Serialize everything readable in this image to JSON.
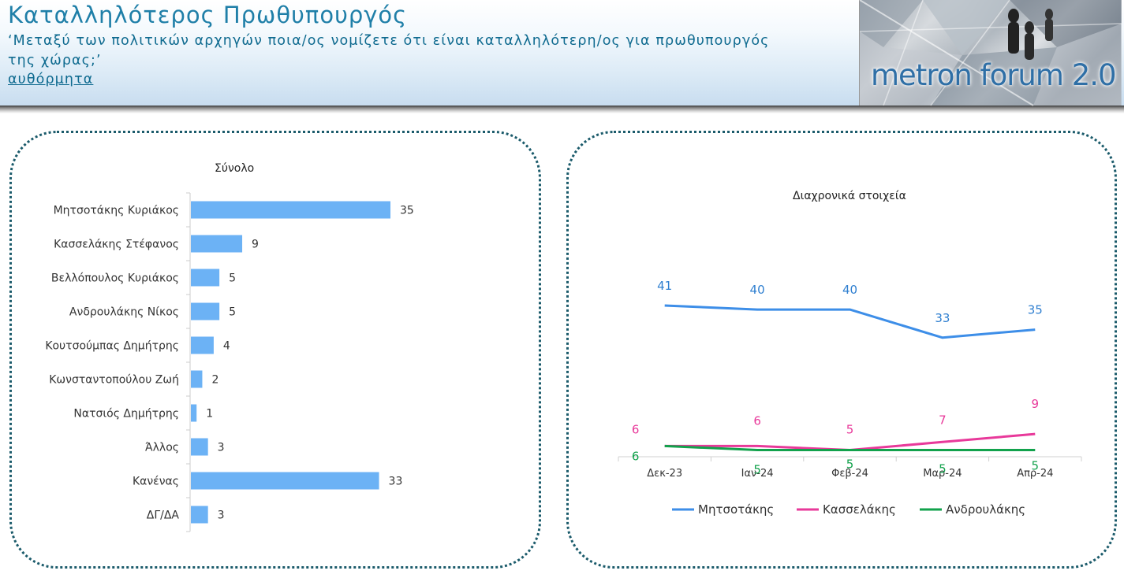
{
  "header": {
    "title": "Καταλληλότερος Πρωθυπουργός",
    "question_line1": "‘Μεταξύ των πολιτικών αρχηγών ποια/ος νομίζετε ότι είναι καταλληλότερη/ος για πρωθυπουργός",
    "question_line2": "της χώρας;’",
    "subtitle": "αυθόρμητα"
  },
  "logo": {
    "text": "metron forum 2.0"
  },
  "colors": {
    "bar": "#6cb2f5",
    "mitsotakis": "#3d8ee8",
    "kasselakis": "#e8399a",
    "androulakis": "#12a24c",
    "blue_label": "#2f7fd0"
  },
  "chart_data": [
    {
      "type": "bar",
      "title": "Σύνολο",
      "orientation": "horizontal",
      "categories": [
        "Μητσοτάκης Κυριάκος",
        "Κασσελάκης Στέφανος",
        "Βελλόπουλος Κυριάκος",
        "Ανδρουλάκης Νίκος",
        "Κουτσούμπας Δημήτρης",
        "Κωνσταντοπούλου Ζωή",
        "Νατσιός Δημήτρης",
        "Άλλος",
        "Κανένας",
        "ΔΓ/ΔΑ"
      ],
      "values": [
        35,
        9,
        5,
        5,
        4,
        2,
        1,
        3,
        33,
        3
      ],
      "xlim": [
        0,
        40
      ]
    },
    {
      "type": "line",
      "title": "Διαχρονικά στοιχεία",
      "categories": [
        "Δεκ-23",
        "Ιαν-24",
        "Φεβ-24",
        "Μαρ-24",
        "Απρ-24"
      ],
      "ylim": [
        0,
        45
      ],
      "legend_position": "bottom",
      "series": [
        {
          "name": "Μητσοτάκης",
          "values": [
            41,
            40,
            40,
            33,
            35
          ]
        },
        {
          "name": "Κασσελάκης",
          "values": [
            6,
            6,
            5,
            7,
            9
          ]
        },
        {
          "name": "Ανδρουλάκης",
          "values": [
            6,
            5,
            5,
            5,
            5
          ]
        }
      ]
    }
  ]
}
